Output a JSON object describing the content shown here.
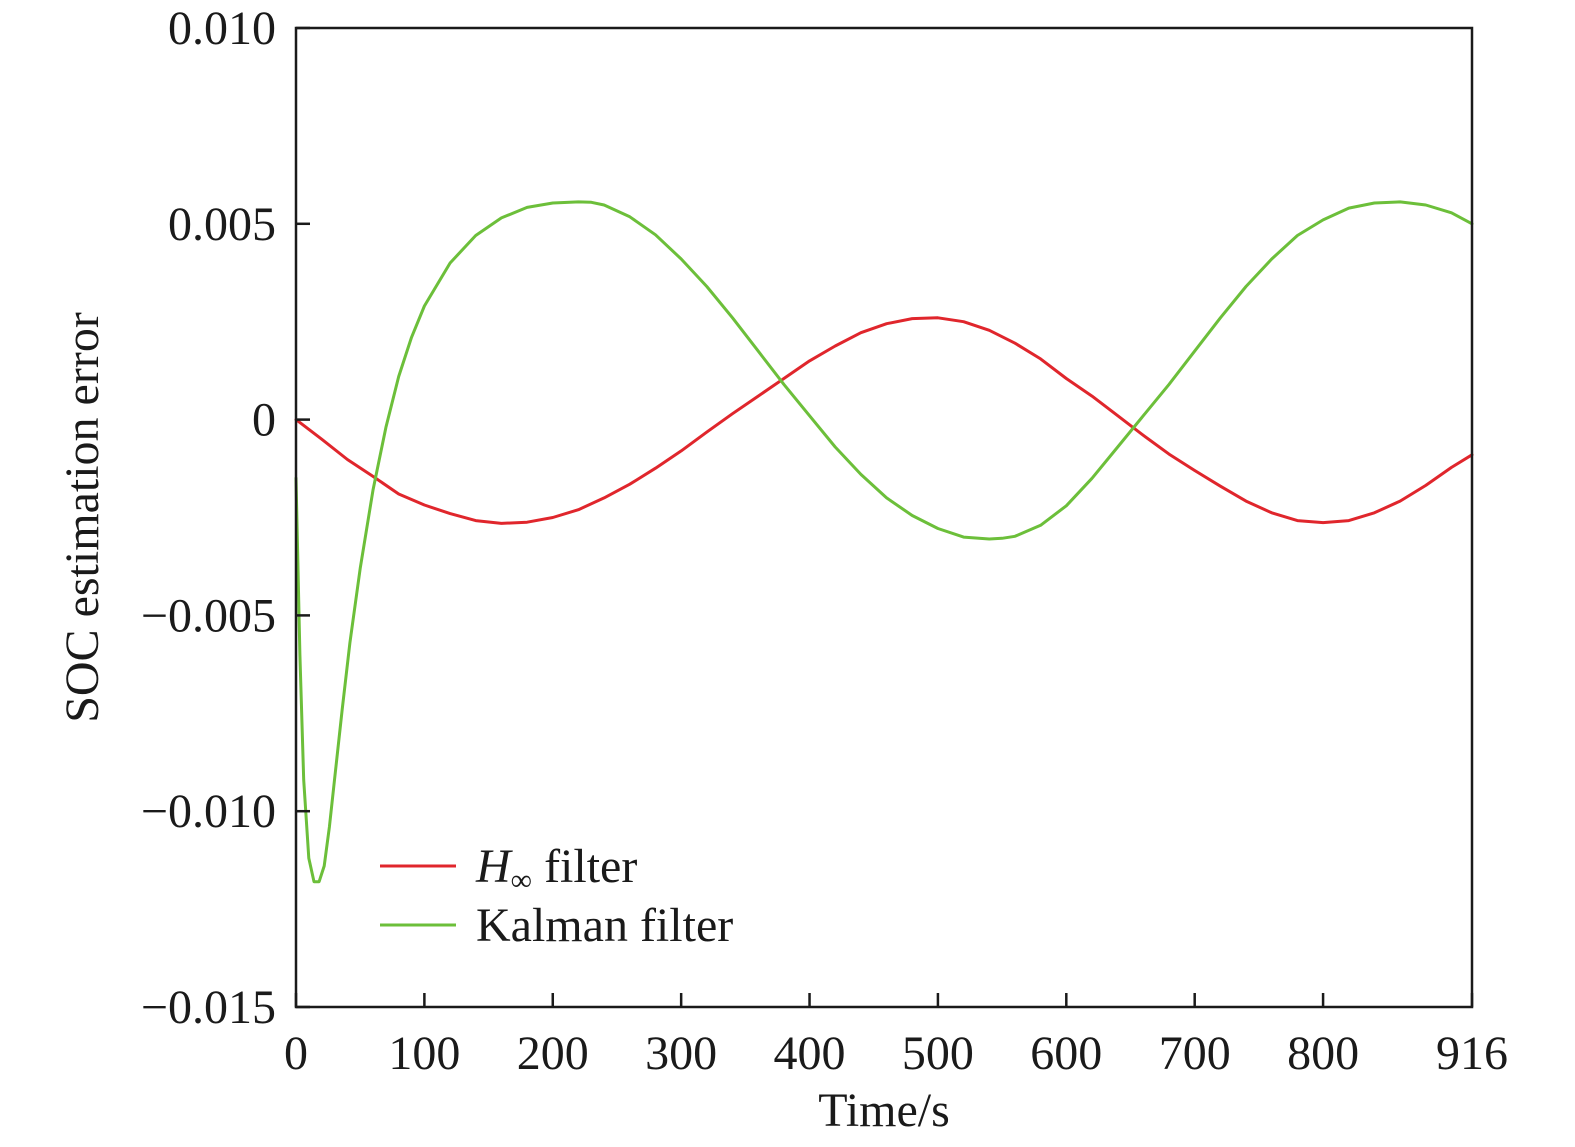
{
  "chart_data": {
    "type": "line",
    "title": "",
    "xlabel": "Time/s",
    "ylabel": "SOC estimation error",
    "xlim": [
      0,
      916
    ],
    "ylim": [
      -0.015,
      0.01
    ],
    "xticks": [
      0,
      100,
      200,
      300,
      400,
      500,
      600,
      700,
      800,
      916
    ],
    "xtick_labels": [
      "0",
      "100",
      "200",
      "300",
      "400",
      "500",
      "600",
      "700",
      "800",
      "916"
    ],
    "yticks": [
      0.01,
      0.005,
      0,
      -0.005,
      -0.01,
      -0.015
    ],
    "ytick_labels": [
      "0.010",
      "0.005",
      "0",
      "−0.005",
      "−0.010",
      "−0.015"
    ],
    "grid": false,
    "legend": {
      "placement": "bottom-left",
      "entries": [
        {
          "main": "H",
          "sub": "∞",
          "rest": " filter"
        },
        {
          "main": "Kalman filter",
          "sub": "",
          "rest": ""
        }
      ]
    },
    "series": [
      {
        "color": "#e0262c",
        "x": [
          0,
          20,
          40,
          60,
          80,
          100,
          120,
          140,
          160,
          180,
          200,
          220,
          240,
          260,
          280,
          300,
          320,
          340,
          360,
          380,
          400,
          420,
          440,
          460,
          480,
          500,
          520,
          540,
          560,
          580,
          600,
          620,
          640,
          660,
          680,
          700,
          720,
          740,
          760,
          780,
          800,
          820,
          840,
          860,
          880,
          900,
          916
        ],
        "y": [
          0,
          -0.0005,
          -0.00102,
          -0.00145,
          -0.0019,
          -0.00218,
          -0.0024,
          -0.00258,
          -0.00265,
          -0.00262,
          -0.0025,
          -0.0023,
          -0.002,
          -0.00165,
          -0.00124,
          -0.0008,
          -0.00032,
          0.00015,
          0.0006,
          0.00105,
          0.0015,
          0.00188,
          0.00222,
          0.00245,
          0.00258,
          0.0026,
          0.0025,
          0.00228,
          0.00195,
          0.00155,
          0.00105,
          0.0006,
          0.0001,
          -0.0004,
          -0.00088,
          -0.0013,
          -0.0017,
          -0.00208,
          -0.00238,
          -0.00258,
          -0.00263,
          -0.00258,
          -0.00238,
          -0.00208,
          -0.00168,
          -0.00122,
          -0.0009
        ]
      },
      {
        "color": "#6cbf3a",
        "x": [
          0,
          3,
          6,
          10,
          14,
          18,
          22,
          26,
          30,
          36,
          42,
          50,
          60,
          70,
          80,
          90,
          100,
          120,
          140,
          160,
          180,
          200,
          220,
          230,
          240,
          260,
          280,
          300,
          320,
          340,
          360,
          380,
          400,
          420,
          440,
          460,
          480,
          500,
          520,
          540,
          550,
          560,
          580,
          600,
          620,
          640,
          660,
          680,
          700,
          720,
          740,
          760,
          780,
          800,
          820,
          840,
          860,
          880,
          900,
          916
        ],
        "y": [
          -0.0015,
          -0.006,
          -0.0092,
          -0.0112,
          -0.0118,
          -0.0118,
          -0.0114,
          -0.0104,
          -0.0092,
          -0.0074,
          -0.0057,
          -0.0038,
          -0.0018,
          -0.0002,
          0.0011,
          0.0021,
          0.0029,
          0.004,
          0.0047,
          0.00515,
          0.00542,
          0.00553,
          0.00556,
          0.00555,
          0.00548,
          0.00518,
          0.00472,
          0.0041,
          0.0034,
          0.0026,
          0.00175,
          0.0009,
          0.0001,
          -0.0007,
          -0.0014,
          -0.002,
          -0.00245,
          -0.00278,
          -0.003,
          -0.00305,
          -0.00303,
          -0.00298,
          -0.0027,
          -0.0022,
          -0.0015,
          -0.0007,
          0.0001,
          0.0009,
          0.00175,
          0.0026,
          0.0034,
          0.0041,
          0.0047,
          0.0051,
          0.0054,
          0.00553,
          0.00556,
          0.00548,
          0.00528,
          0.005
        ]
      }
    ]
  }
}
